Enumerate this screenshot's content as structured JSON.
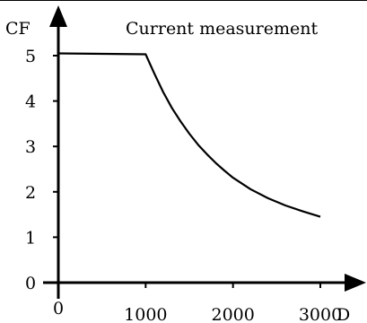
{
  "chart_data": {
    "type": "line",
    "title": "Current measurement",
    "xlabel": "D",
    "ylabel": "CF",
    "x_ticks": [
      "0",
      "1000",
      "2000",
      "3000"
    ],
    "y_ticks": [
      "0",
      "1",
      "2",
      "3",
      "4",
      "5"
    ],
    "xlim": [
      0,
      3000
    ],
    "ylim": [
      0,
      5
    ],
    "grid": false,
    "series": [
      {
        "points": [
          [
            0,
            5.05
          ],
          [
            1000,
            5.03
          ],
          [
            1100,
            4.6
          ],
          [
            1200,
            4.2
          ],
          [
            1300,
            3.85
          ],
          [
            1400,
            3.55
          ],
          [
            1500,
            3.28
          ],
          [
            1600,
            3.04
          ],
          [
            1700,
            2.83
          ],
          [
            1800,
            2.64
          ],
          [
            1900,
            2.47
          ],
          [
            2000,
            2.31
          ],
          [
            2200,
            2.06
          ],
          [
            2400,
            1.86
          ],
          [
            2600,
            1.7
          ],
          [
            2800,
            1.57
          ],
          [
            3000,
            1.45
          ]
        ]
      }
    ]
  }
}
